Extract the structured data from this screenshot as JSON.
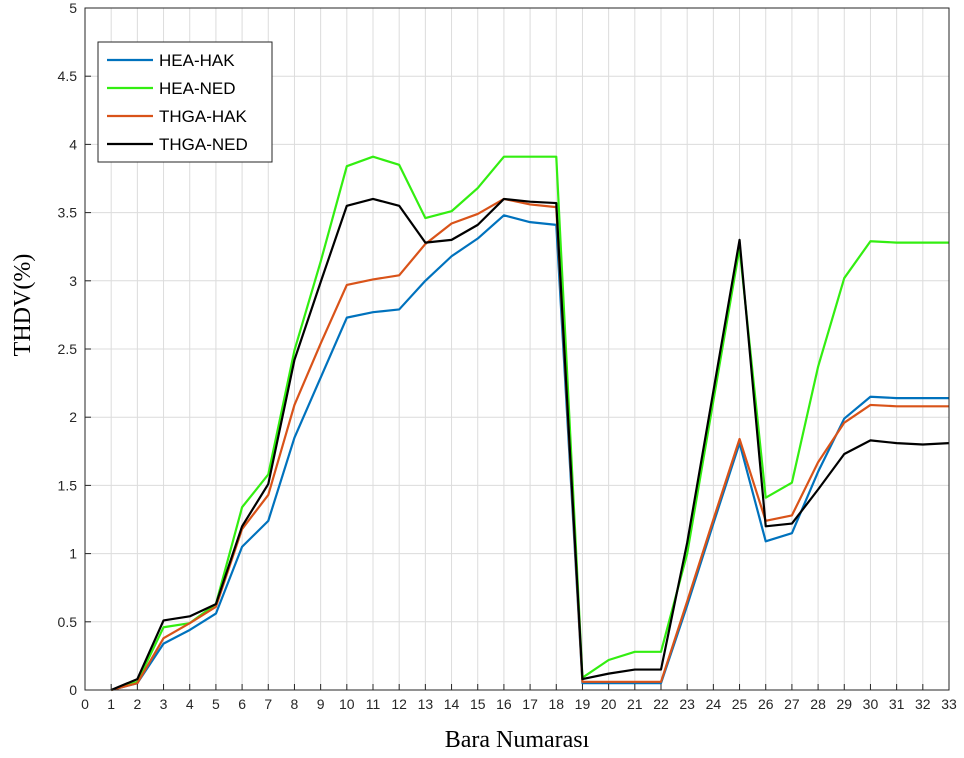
{
  "chart_data": {
    "type": "line",
    "title": "",
    "xlabel": "Bara Numarası",
    "ylabel": "THDV(%)",
    "xlim": [
      0,
      33
    ],
    "ylim": [
      0,
      5
    ],
    "xticks": [
      0,
      1,
      2,
      3,
      4,
      5,
      6,
      7,
      8,
      9,
      10,
      11,
      12,
      13,
      14,
      15,
      16,
      17,
      18,
      19,
      20,
      21,
      22,
      23,
      24,
      25,
      26,
      27,
      28,
      29,
      30,
      31,
      32,
      33
    ],
    "yticks": [
      0,
      0.5,
      1,
      1.5,
      2,
      2.5,
      3,
      3.5,
      4,
      4.5,
      5
    ],
    "ytick_labels": [
      "0",
      "0.5",
      "1",
      "1.5",
      "2",
      "2.5",
      "3",
      "3.5",
      "4",
      "4.5",
      "5"
    ],
    "grid": true,
    "legend_position": "top-left",
    "x": [
      1,
      2,
      3,
      4,
      5,
      6,
      7,
      8,
      9,
      10,
      11,
      12,
      13,
      14,
      15,
      16,
      17,
      18,
      19,
      20,
      21,
      22,
      23,
      24,
      25,
      26,
      27,
      28,
      29,
      30,
      31,
      32,
      33
    ],
    "series": [
      {
        "name": "HEA-HAK",
        "color": "#0072BD",
        "values": [
          0,
          0.05,
          0.34,
          0.44,
          0.56,
          1.05,
          1.24,
          1.85,
          2.29,
          2.73,
          2.77,
          2.79,
          3.0,
          3.18,
          3.31,
          3.48,
          3.43,
          3.41,
          0.05,
          0.05,
          0.05,
          0.05,
          0.62,
          1.22,
          1.81,
          1.09,
          1.15,
          1.6,
          1.99,
          2.15,
          2.14,
          2.14,
          2.14
        ]
      },
      {
        "name": "HEA-NED",
        "color": "#33EE11",
        "values": [
          0,
          0.06,
          0.46,
          0.49,
          0.63,
          1.34,
          1.58,
          2.49,
          3.14,
          3.84,
          3.91,
          3.85,
          3.46,
          3.51,
          3.68,
          3.91,
          3.91,
          3.91,
          0.09,
          0.22,
          0.28,
          0.28,
          1.0,
          2.12,
          3.24,
          1.41,
          1.52,
          2.37,
          3.02,
          3.29,
          3.28,
          3.28,
          3.28
        ]
      },
      {
        "name": "THGA-HAK",
        "color": "#D95319",
        "values": [
          0,
          0.05,
          0.38,
          0.49,
          0.61,
          1.18,
          1.43,
          2.09,
          2.54,
          2.97,
          3.01,
          3.04,
          3.27,
          3.42,
          3.49,
          3.6,
          3.56,
          3.54,
          0.06,
          0.06,
          0.06,
          0.06,
          0.65,
          1.25,
          1.84,
          1.24,
          1.28,
          1.67,
          1.96,
          2.09,
          2.08,
          2.08,
          2.08
        ]
      },
      {
        "name": "THGA-NED",
        "color": "#000000",
        "values": [
          0,
          0.08,
          0.51,
          0.54,
          0.63,
          1.2,
          1.51,
          2.42,
          2.99,
          3.55,
          3.6,
          3.55,
          3.28,
          3.3,
          3.41,
          3.6,
          3.58,
          3.57,
          0.08,
          0.12,
          0.15,
          0.15,
          1.08,
          2.19,
          3.3,
          1.2,
          1.22,
          1.47,
          1.73,
          1.83,
          1.81,
          1.8,
          1.81
        ]
      }
    ]
  }
}
